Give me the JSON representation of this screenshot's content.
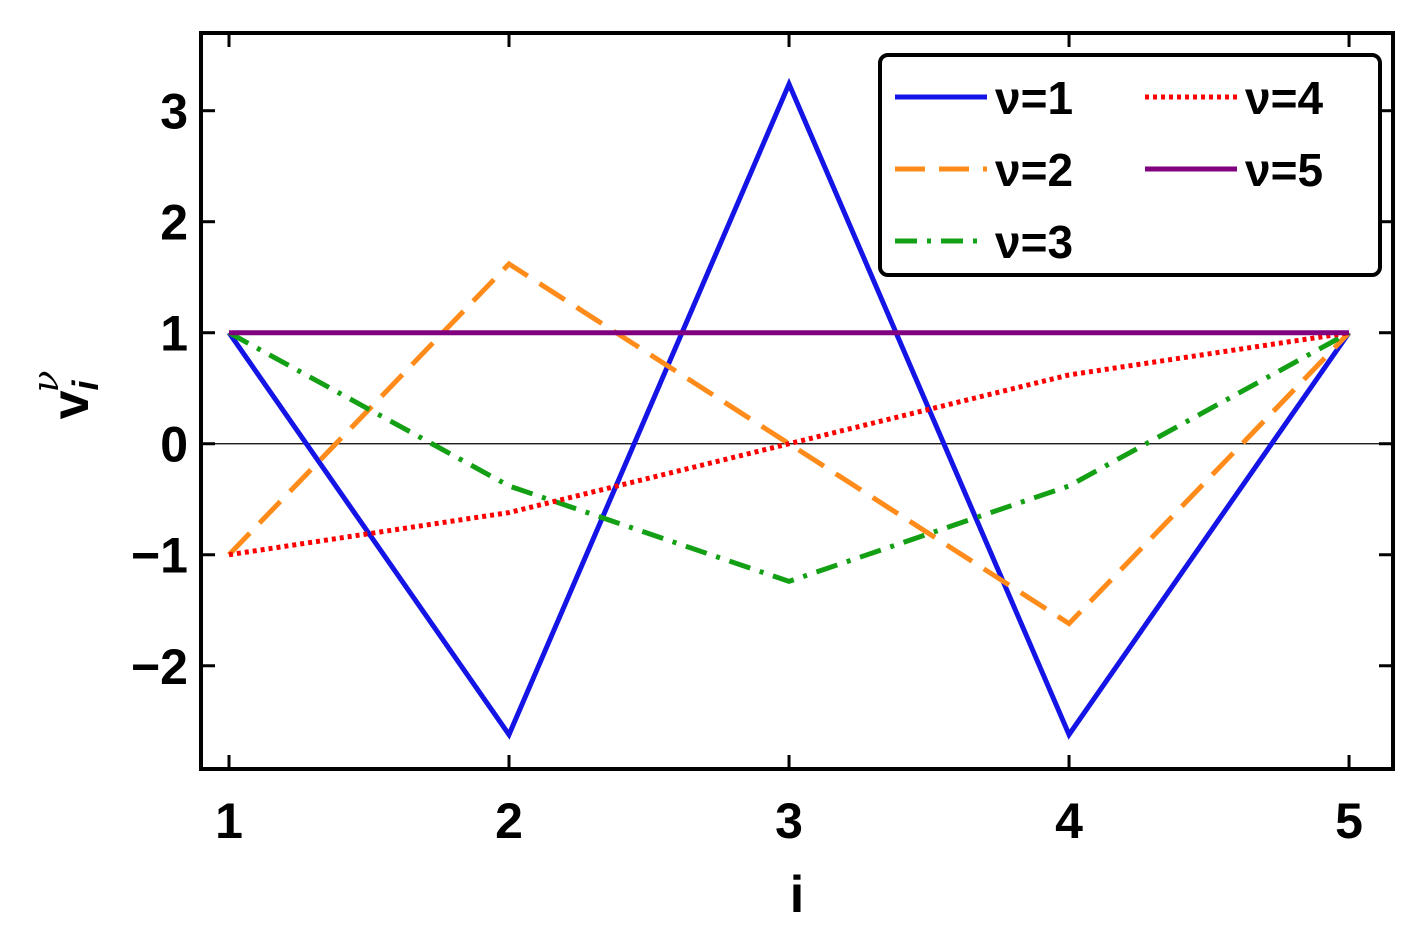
{
  "chart_data": {
    "type": "line",
    "xlabel": "i",
    "ylabel": {
      "base": "v",
      "sub": "i",
      "sup": "ν"
    },
    "x": [
      1,
      2,
      3,
      4,
      5
    ],
    "series": [
      {
        "name": "ν=1",
        "color": "#1414e6",
        "dash": "solid",
        "values": [
          1,
          -2.62,
          3.24,
          -2.62,
          1
        ]
      },
      {
        "name": "ν=2",
        "color": "#ff8c1a",
        "dash": "dashed",
        "values": [
          -1,
          1.62,
          0,
          -1.62,
          1
        ]
      },
      {
        "name": "ν=3",
        "color": "#14a014",
        "dash": "dashdot",
        "values": [
          1,
          -0.38,
          -1.24,
          -0.38,
          1
        ]
      },
      {
        "name": "ν=4",
        "color": "#ff0000",
        "dash": "dotted",
        "values": [
          -1,
          -0.62,
          0,
          0.62,
          1
        ]
      },
      {
        "name": "ν=5",
        "color": "#800080",
        "dash": "solid",
        "values": [
          1,
          1,
          1,
          1,
          1
        ]
      }
    ],
    "xlim": [
      0.9,
      5.157
    ],
    "ylim": [
      -2.93,
      3.7
    ],
    "xticks": [
      1,
      2,
      3,
      4,
      5
    ],
    "yticks": [
      {
        "value": -2,
        "label": "−2"
      },
      {
        "value": -1,
        "label": "−1"
      },
      0,
      1,
      2,
      3
    ],
    "legend": "top-right"
  }
}
